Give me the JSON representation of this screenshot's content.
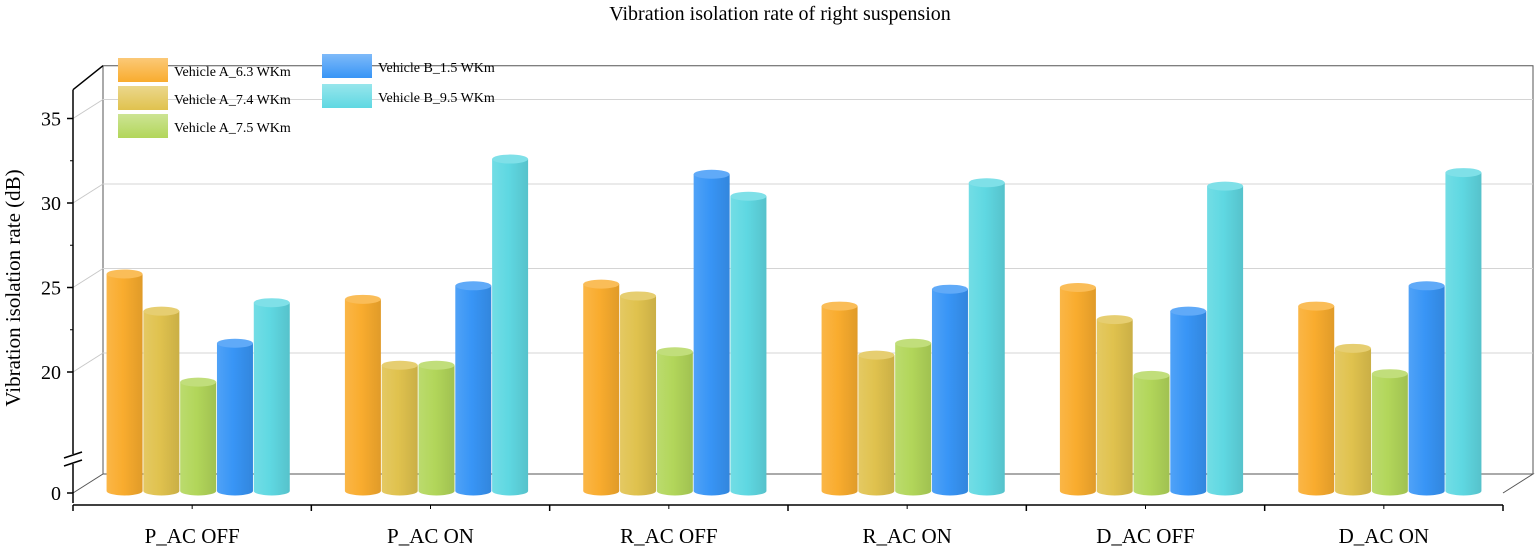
{
  "chart_data": {
    "type": "bar",
    "title": "Vibration isolation rate of right suspension",
    "ylabel": "Vibration isolation rate (dB)",
    "xlabel": "",
    "categories": [
      "P_AC OFF",
      "P_AC ON",
      "R_AC OFF",
      "R_AC ON",
      "D_AC OFF",
      "D_AC ON"
    ],
    "series": [
      {
        "name": "Vehicle A_6.3 WKm",
        "color": "#F9AC2E",
        "values": [
          25.8,
          24.3,
          25.2,
          23.9,
          25.0,
          23.9
        ]
      },
      {
        "name": "Vehicle A_7.4 WKm",
        "color": "#E0C24E",
        "values": [
          23.6,
          20.4,
          24.5,
          21.0,
          23.1,
          21.4
        ]
      },
      {
        "name": "Vehicle A_7.5 WKm",
        "color": "#B2D65A",
        "values": [
          19.4,
          20.4,
          21.2,
          21.7,
          19.8,
          19.9
        ]
      },
      {
        "name": "Vehicle B_1.5 WKm",
        "color": "#3895F6",
        "values": [
          21.7,
          25.1,
          31.7,
          24.9,
          23.6,
          25.1
        ]
      },
      {
        "name": "Vehicle B_9.5 WKm",
        "color": "#5FD8E2",
        "values": [
          24.1,
          32.6,
          30.4,
          31.2,
          31.0,
          31.8
        ]
      }
    ],
    "yticks": [
      0,
      20,
      25,
      30,
      35
    ],
    "axis_break": [
      0,
      15
    ],
    "ylim": [
      15,
      37
    ],
    "grid": true,
    "legend_position": "top-left",
    "style": "3d-cylinder"
  }
}
